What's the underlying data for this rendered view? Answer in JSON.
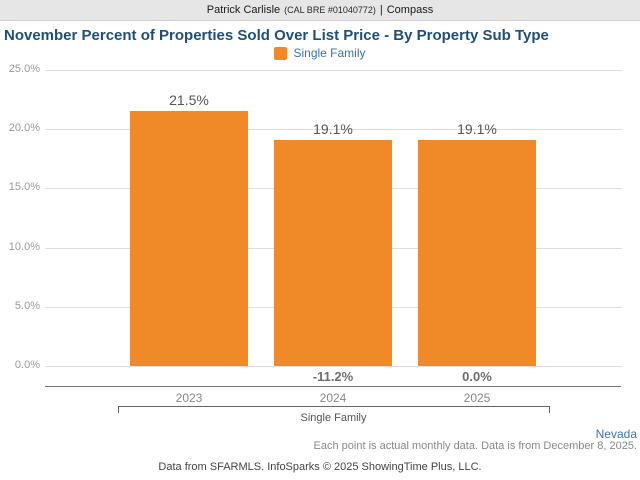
{
  "header": {
    "agent": "Patrick Carlisle",
    "license": "(CAL BRE #01040772)",
    "separator": "|",
    "brokerage": "Compass"
  },
  "title": "November Percent of Properties Sold Over List Price - By Property Sub Type",
  "legend": {
    "label": "Single Family",
    "color": "#F08A28"
  },
  "chart_data": {
    "type": "bar",
    "title": "November Percent of Properties Sold Over List Price - By Property Sub Type",
    "categories": [
      "2023",
      "2024",
      "2025"
    ],
    "series": [
      {
        "name": "Single Family",
        "values": [
          21.5,
          19.1,
          19.1
        ]
      }
    ],
    "value_labels": [
      "21.5%",
      "19.1%",
      "19.1%"
    ],
    "change_labels": [
      "",
      "-11.2%",
      "0.0%"
    ],
    "group_label": "Single Family",
    "xlabel": "",
    "ylabel": "",
    "ylim": [
      0,
      25
    ],
    "yticks": [
      "25.0%",
      "20.0%",
      "15.0%",
      "10.0%",
      "5.0%",
      "0.0%"
    ],
    "ytick_values": [
      25,
      20,
      15,
      10,
      5,
      0
    ],
    "grid": true,
    "legend_position": "top",
    "bar_color": "#F08A28"
  },
  "footer": {
    "region": "Nevada",
    "note": "Each point is actual monthly data. Data is from December 8, 2025.",
    "attribution": "Data from SFARMLS. InfoSparks © 2025 ShowingTime Plus, LLC."
  },
  "colors": {
    "title_blue": "#1F4E79",
    "link_blue": "#3D74A6",
    "bar_orange": "#F08A28",
    "header_bar_bg": "#E6E6E6"
  }
}
